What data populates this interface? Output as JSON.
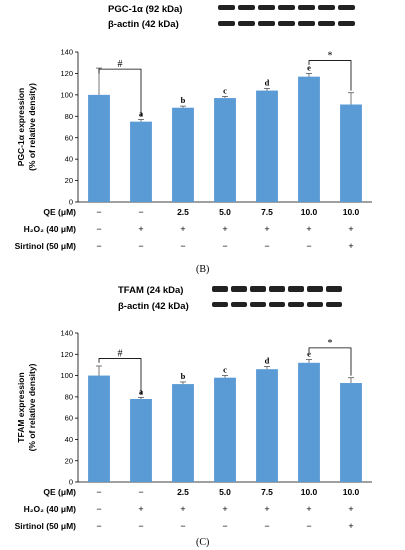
{
  "figure": {
    "panel_B_label": "(B)",
    "panel_C_label": "(C)"
  },
  "chart_data": [
    {
      "type": "bar",
      "blot": {
        "target_label": "PGC-1α (92 kDa)",
        "control_label": "β-actin (42 kDa)"
      },
      "ylabel": "PGC-1α expression",
      "ylabel2": "(% of relative density)",
      "ylim": [
        0,
        140
      ],
      "yticks": [
        0,
        20,
        40,
        60,
        80,
        100,
        120,
        140
      ],
      "values": [
        100,
        75,
        88,
        97,
        104,
        117,
        91
      ],
      "errors": [
        25,
        2,
        1.5,
        1.5,
        2,
        3,
        11
      ],
      "letters": [
        "",
        "a",
        "b",
        "c",
        "d",
        "e",
        ""
      ],
      "significance": [
        "#",
        "*"
      ],
      "color": "#5b9bd5",
      "table": {
        "rows": [
          {
            "label": "QE (μM)",
            "values": [
              "−",
              "−",
              "2.5",
              "5.0",
              "7.5",
              "10.0",
              "10.0"
            ]
          },
          {
            "label": "H₂O₂ (40 μM)",
            "values": [
              "−",
              "+",
              "+",
              "+",
              "+",
              "+",
              "+"
            ]
          },
          {
            "label": "Sirtinol (50 μM)",
            "values": [
              "−",
              "−",
              "−",
              "−",
              "−",
              "−",
              "+"
            ]
          }
        ]
      }
    },
    {
      "type": "bar",
      "blot": {
        "target_label": "TFAM  (24 kDa)",
        "control_label": "β-actin (42 kDa)"
      },
      "ylabel": "TFAM expression",
      "ylabel2": "(% of relative density)",
      "ylim": [
        0,
        140
      ],
      "yticks": [
        0,
        20,
        40,
        60,
        80,
        100,
        120,
        140
      ],
      "values": [
        100,
        78,
        92,
        98,
        106,
        112,
        93
      ],
      "errors": [
        9,
        1.5,
        2,
        2,
        2.5,
        3,
        5
      ],
      "letters": [
        "",
        "a",
        "b",
        "c",
        "d",
        "e",
        ""
      ],
      "significance": [
        "#",
        "*"
      ],
      "color": "#5b9bd5",
      "table": {
        "rows": [
          {
            "label": "QE (μM)",
            "values": [
              "−",
              "−",
              "2.5",
              "5.0",
              "7.5",
              "10.0",
              "10.0"
            ]
          },
          {
            "label": "H₂O₂ (40 μM)",
            "values": [
              "−",
              "+",
              "+",
              "+",
              "+",
              "+",
              "+"
            ]
          },
          {
            "label": "Sirtinol (50 μM)",
            "values": [
              "−",
              "−",
              "−",
              "−",
              "−",
              "−",
              "+"
            ]
          }
        ]
      }
    }
  ]
}
